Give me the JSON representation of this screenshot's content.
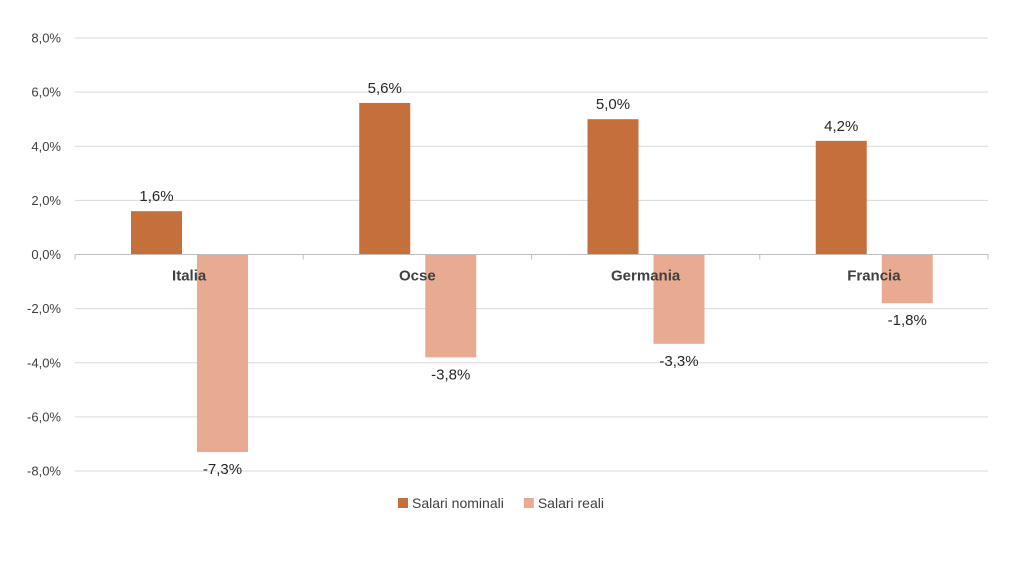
{
  "chart_data": {
    "type": "bar",
    "title": "",
    "xlabel": "",
    "ylabel": "",
    "categories": [
      "Italia",
      "Ocse",
      "Germania",
      "Francia"
    ],
    "series": [
      {
        "name": "Salari nominali",
        "values": [
          1.6,
          5.6,
          5.0,
          4.2
        ],
        "labels": [
          "1,6%",
          "5,6%",
          "5,0%",
          "4,2%"
        ],
        "color": "#C5703A"
      },
      {
        "name": "Salari reali",
        "values": [
          -7.3,
          -3.8,
          -3.3,
          -1.8
        ],
        "labels": [
          "-7,3%",
          "-3,8%",
          "-3,3%",
          "-1,8%"
        ],
        "color": "#E8AB92"
      }
    ],
    "ylim": [
      -8,
      8
    ],
    "yticks": [
      8,
      6,
      4,
      2,
      0,
      -2,
      -4,
      -6,
      -8
    ],
    "ytick_labels": [
      "8,0%",
      "6,0%",
      "4,0%",
      "2,0%",
      "0,0%",
      "-2,0%",
      "-4,0%",
      "-6,0%",
      "-8,0%"
    ],
    "grid": true,
    "legend_position": "bottom",
    "colors": {
      "grid": "#D9D9D9",
      "axis": "#BFBFBF"
    }
  }
}
